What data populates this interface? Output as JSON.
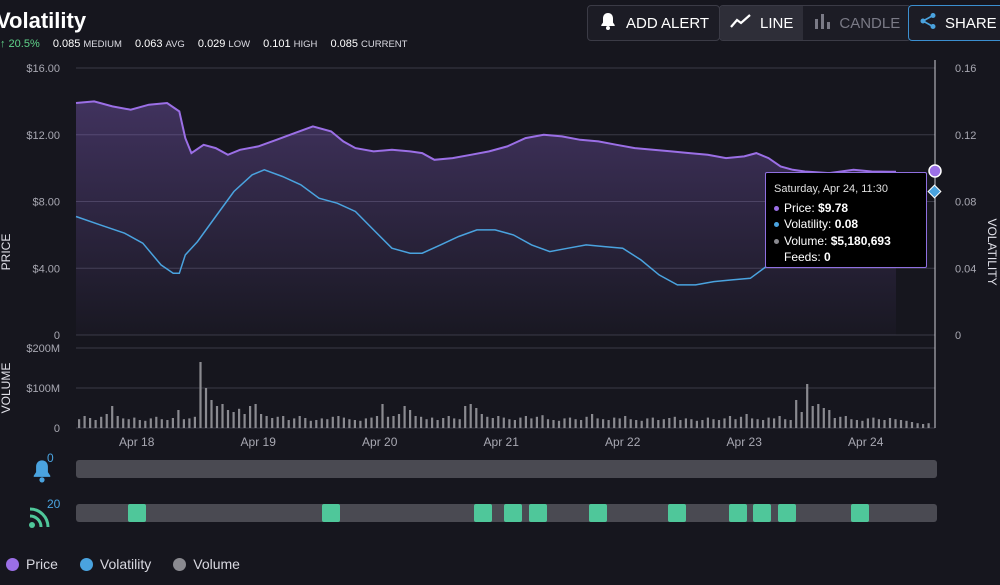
{
  "title": "Volatility",
  "stats": {
    "change": "↑ 20.5%",
    "items": [
      {
        "value": "0.085",
        "label": "MEDIUM"
      },
      {
        "value": "0.063",
        "label": "AVG"
      },
      {
        "value": "0.029",
        "label": "LOW"
      },
      {
        "value": "0.101",
        "label": "HIGH"
      },
      {
        "value": "0.085",
        "label": "CURRENT"
      }
    ]
  },
  "toolbar": {
    "add_alert": "ADD ALERT",
    "line": "LINE",
    "candle": "CANDLE",
    "share": "SHARE"
  },
  "colors": {
    "price": "#9b6fe6",
    "volatility": "#4aa3df",
    "volume": "#8a8a90",
    "feed_on": "#4fc79a",
    "tooltip_border": "#8f6fe0"
  },
  "chart_data": {
    "type": "line",
    "price_axis": {
      "label": "PRICE",
      "ticks": [
        "$16.00",
        "$12.00",
        "$8.00",
        "$4.00",
        "0"
      ],
      "ylim": [
        0,
        16
      ]
    },
    "volatility_axis": {
      "label": "VOLATILITY",
      "ticks": [
        "0.16",
        "0.12",
        "0.08",
        "0.04",
        "0"
      ],
      "ylim": [
        0,
        0.16
      ]
    },
    "volume_axis": {
      "label": "VOLUME",
      "ticks": [
        "$200M",
        "$100M",
        "0"
      ],
      "ylim": [
        0,
        200
      ]
    },
    "x_labels": [
      "Apr 18",
      "Apr 19",
      "Apr 20",
      "Apr 21",
      "Apr 22",
      "Apr 23",
      "Apr 24"
    ],
    "x_range": [
      0,
      7
    ],
    "series": [
      {
        "name": "Price",
        "points": [
          [
            0,
            13.9
          ],
          [
            0.15,
            14.0
          ],
          [
            0.3,
            13.7
          ],
          [
            0.45,
            13.5
          ],
          [
            0.6,
            13.8
          ],
          [
            0.75,
            13.9
          ],
          [
            0.85,
            13.4
          ],
          [
            0.9,
            11.8
          ],
          [
            0.95,
            10.9
          ],
          [
            1.05,
            11.4
          ],
          [
            1.15,
            11.2
          ],
          [
            1.25,
            10.8
          ],
          [
            1.35,
            11.1
          ],
          [
            1.5,
            11.3
          ],
          [
            1.65,
            11.7
          ],
          [
            1.8,
            12.1
          ],
          [
            1.95,
            12.5
          ],
          [
            2.1,
            12.2
          ],
          [
            2.2,
            11.6
          ],
          [
            2.3,
            11.2
          ],
          [
            2.45,
            11.0
          ],
          [
            2.6,
            11.1
          ],
          [
            2.75,
            11.0
          ],
          [
            2.85,
            10.9
          ],
          [
            2.95,
            10.5
          ],
          [
            3.1,
            10.6
          ],
          [
            3.25,
            10.8
          ],
          [
            3.4,
            11.0
          ],
          [
            3.55,
            11.3
          ],
          [
            3.7,
            11.8
          ],
          [
            3.85,
            12.0
          ],
          [
            4.0,
            11.9
          ],
          [
            4.15,
            11.7
          ],
          [
            4.3,
            11.6
          ],
          [
            4.45,
            11.4
          ],
          [
            4.6,
            11.2
          ],
          [
            4.75,
            11.1
          ],
          [
            4.9,
            11.0
          ],
          [
            5.05,
            10.9
          ],
          [
            5.2,
            10.8
          ],
          [
            5.35,
            10.6
          ],
          [
            5.5,
            10.7
          ],
          [
            5.6,
            10.9
          ],
          [
            5.7,
            10.6
          ],
          [
            5.8,
            10.1
          ],
          [
            5.9,
            9.9
          ],
          [
            6.0,
            9.8
          ],
          [
            6.2,
            9.7
          ],
          [
            6.4,
            9.9
          ],
          [
            6.55,
            9.8
          ],
          [
            6.75,
            9.78
          ]
        ]
      },
      {
        "name": "Volatility",
        "points": [
          [
            0,
            0.071
          ],
          [
            0.2,
            0.066
          ],
          [
            0.4,
            0.061
          ],
          [
            0.55,
            0.055
          ],
          [
            0.7,
            0.042
          ],
          [
            0.8,
            0.037
          ],
          [
            0.85,
            0.037
          ],
          [
            0.9,
            0.048
          ],
          [
            1.0,
            0.056
          ],
          [
            1.15,
            0.071
          ],
          [
            1.3,
            0.086
          ],
          [
            1.45,
            0.096
          ],
          [
            1.55,
            0.099
          ],
          [
            1.7,
            0.095
          ],
          [
            1.85,
            0.09
          ],
          [
            2.0,
            0.082
          ],
          [
            2.15,
            0.079
          ],
          [
            2.3,
            0.074
          ],
          [
            2.45,
            0.063
          ],
          [
            2.6,
            0.052
          ],
          [
            2.75,
            0.049
          ],
          [
            2.85,
            0.049
          ],
          [
            3.0,
            0.054
          ],
          [
            3.15,
            0.059
          ],
          [
            3.3,
            0.063
          ],
          [
            3.45,
            0.063
          ],
          [
            3.6,
            0.06
          ],
          [
            3.75,
            0.054
          ],
          [
            3.9,
            0.05
          ],
          [
            4.05,
            0.052
          ],
          [
            4.2,
            0.054
          ],
          [
            4.35,
            0.053
          ],
          [
            4.5,
            0.052
          ],
          [
            4.65,
            0.045
          ],
          [
            4.8,
            0.036
          ],
          [
            4.95,
            0.03
          ],
          [
            5.1,
            0.03
          ],
          [
            5.25,
            0.032
          ],
          [
            5.4,
            0.033
          ],
          [
            5.55,
            0.034
          ],
          [
            5.7,
            0.042
          ],
          [
            5.8,
            0.06
          ],
          [
            5.9,
            0.077
          ],
          [
            6.05,
            0.084
          ],
          [
            6.25,
            0.085
          ],
          [
            6.5,
            0.084
          ],
          [
            6.75,
            0.085
          ]
        ]
      }
    ],
    "volume_bars": [
      22,
      30,
      25,
      20,
      28,
      35,
      55,
      30,
      24,
      22,
      26,
      20,
      18,
      24,
      28,
      22,
      20,
      25,
      45,
      22,
      24,
      28,
      165,
      100,
      70,
      55,
      60,
      45,
      40,
      48,
      35,
      55,
      60,
      35,
      30,
      25,
      28,
      30,
      20,
      24,
      30,
      25,
      18,
      20,
      24,
      22,
      28,
      30,
      26,
      22,
      20,
      18,
      24,
      26,
      30,
      60,
      28,
      30,
      35,
      55,
      45,
      30,
      28,
      22,
      26,
      20,
      25,
      30,
      24,
      22,
      55,
      60,
      50,
      35,
      28,
      25,
      30,
      26,
      22,
      20,
      26,
      30,
      24,
      28,
      32,
      22,
      20,
      18,
      24,
      26,
      22,
      20,
      28,
      35,
      24,
      22,
      20,
      26,
      24,
      30,
      22,
      20,
      18,
      24,
      26,
      20,
      22,
      25,
      28,
      20,
      24,
      22,
      18,
      20,
      26,
      22,
      20,
      24,
      30,
      22,
      28,
      35,
      24,
      22,
      20,
      26,
      24,
      30,
      22,
      20,
      70,
      40,
      110,
      55,
      60,
      50,
      45,
      25,
      28,
      30,
      22,
      20,
      18,
      24,
      26,
      22,
      20,
      25,
      22,
      20,
      18,
      15,
      12,
      10,
      12
    ]
  },
  "tooltip": {
    "date": "Saturday, Apr 24, 11:30",
    "price_label": "Price:",
    "price_value": "$9.78",
    "volatility_label": "Volatility:",
    "volatility_value": "0.08",
    "volume_label": "Volume:",
    "volume_value": "$5,180,693",
    "feeds_label": "Feeds:",
    "feeds_value": "0"
  },
  "timeline": {
    "alerts_count": "0",
    "feeds_count": "20",
    "feed_marks": [
      0.5,
      2.1,
      3.35,
      3.6,
      3.8,
      4.3,
      4.95,
      5.45,
      5.65,
      5.85,
      6.45
    ]
  },
  "legend": [
    {
      "name": "Price",
      "color": "#9b6fe6"
    },
    {
      "name": "Volatility",
      "color": "#4aa3df"
    },
    {
      "name": "Volume",
      "color": "#8a8a90"
    }
  ]
}
